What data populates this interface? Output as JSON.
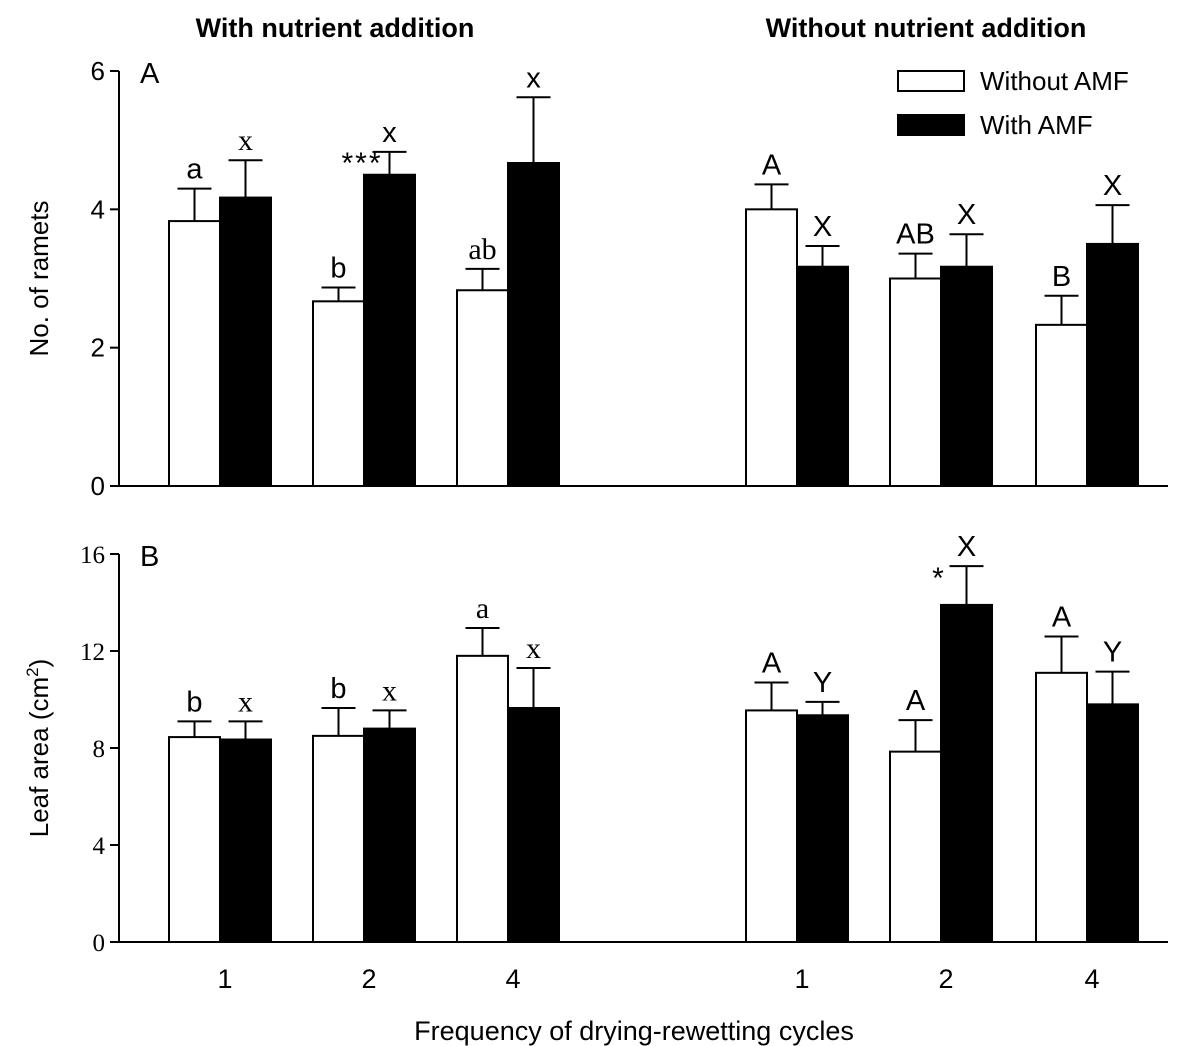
{
  "chart_data": {
    "type": "bar",
    "group_titles": [
      "With nutrient addition",
      "Without nutrient addition"
    ],
    "categories": [
      "1",
      "2",
      "4"
    ],
    "xlabel": "Frequency of drying-rewetting cycles",
    "legend": {
      "placement": "top-right",
      "entries": [
        {
          "name": "Without AMF",
          "fill": "#ffffff"
        },
        {
          "name": "With AMF",
          "fill": "#000000"
        }
      ]
    },
    "panels": [
      {
        "id": "A",
        "ylabel": "No. of ramets",
        "ylim": [
          0,
          6
        ],
        "yticks": [
          "0",
          "2",
          "4",
          "6"
        ],
        "groups": [
          {
            "series": [
              {
                "name": "Without AMF",
                "values": [
                  3.83,
                  2.67,
                  2.83
                ],
                "errors": [
                  0.47,
                  0.2,
                  0.31
                ],
                "letters": [
                  "a",
                  "b",
                  "ab"
                ]
              },
              {
                "name": "With AMF",
                "values": [
                  4.17,
                  4.5,
                  4.67
                ],
                "errors": [
                  0.54,
                  0.33,
                  0.95
                ],
                "letters": [
                  "x",
                  "x",
                  "x"
                ]
              }
            ],
            "significance": [
              "",
              "***",
              ""
            ]
          },
          {
            "series": [
              {
                "name": "Without AMF",
                "values": [
                  4.0,
                  3.0,
                  2.33
                ],
                "errors": [
                  0.36,
                  0.36,
                  0.42
                ],
                "letters": [
                  "A",
                  "AB",
                  "B"
                ]
              },
              {
                "name": "With AMF",
                "values": [
                  3.17,
                  3.17,
                  3.5
                ],
                "errors": [
                  0.3,
                  0.47,
                  0.56
                ],
                "letters": [
                  "X",
                  "X",
                  "X"
                ]
              }
            ],
            "significance": [
              "",
              "",
              ""
            ]
          }
        ]
      },
      {
        "id": "B",
        "ylabel": "Leaf area (cm",
        "ylabel_sup": "2",
        "ylabel_end": ")",
        "ylim": [
          0,
          16
        ],
        "yticks": [
          "0",
          "4",
          "8",
          "12",
          "16"
        ],
        "groups": [
          {
            "series": [
              {
                "name": "Without AMF",
                "values": [
                  8.45,
                  8.5,
                  11.8
                ],
                "errors": [
                  0.65,
                  1.15,
                  1.15
                ],
                "letters": [
                  "b",
                  "b",
                  "a"
                ]
              },
              {
                "name": "With AMF",
                "values": [
                  8.35,
                  8.8,
                  9.65
                ],
                "errors": [
                  0.75,
                  0.75,
                  1.65
                ],
                "letters": [
                  "x",
                  "x",
                  "x"
                ]
              }
            ],
            "significance": [
              "",
              "",
              ""
            ]
          },
          {
            "series": [
              {
                "name": "Without AMF",
                "values": [
                  9.55,
                  7.85,
                  11.1
                ],
                "errors": [
                  1.15,
                  1.3,
                  1.5
                ],
                "letters": [
                  "A",
                  "A",
                  "A"
                ]
              },
              {
                "name": "With AMF",
                "values": [
                  9.35,
                  13.9,
                  9.8
                ],
                "errors": [
                  0.55,
                  1.6,
                  1.35
                ],
                "letters": [
                  "Y",
                  "X",
                  "Y"
                ]
              }
            ],
            "significance": [
              "",
              "*",
              ""
            ]
          }
        ]
      }
    ]
  }
}
